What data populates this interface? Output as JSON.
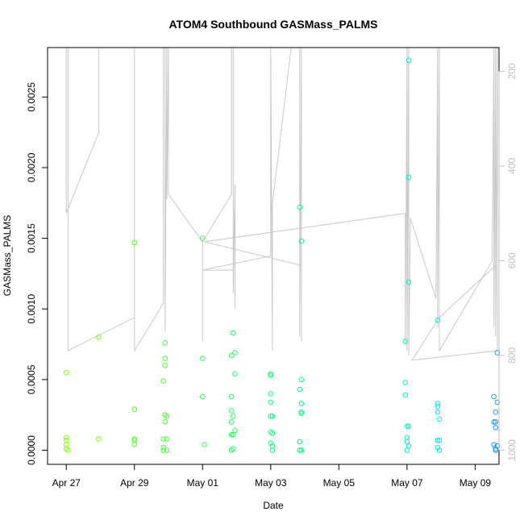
{
  "chart_data": {
    "type": "scatter",
    "title": "ATOM4 Southbound GASMass_PALMS",
    "xlabel": "Date",
    "ylabel": "GASMass_PALMS",
    "x_unit": "days since Apr 27",
    "xlim": [
      -0.55,
      12.7
    ],
    "ylim": [
      -0.0001,
      0.00285
    ],
    "x_ticks": [
      {
        "value": 0,
        "label": "Apr 27"
      },
      {
        "value": 2,
        "label": "Apr 29"
      },
      {
        "value": 4,
        "label": "May 01"
      },
      {
        "value": 6,
        "label": "May 03"
      },
      {
        "value": 8,
        "label": "May 05"
      },
      {
        "value": 10,
        "label": "May 07"
      },
      {
        "value": 12,
        "label": "May 09"
      }
    ],
    "y_ticks": [
      {
        "value": 0,
        "label": "0.0000"
      },
      {
        "value": 0.0005,
        "label": "0.0005"
      },
      {
        "value": 0.001,
        "label": "0.0010"
      },
      {
        "value": 0.0015,
        "label": "0.0015"
      },
      {
        "value": 0.002,
        "label": "0.0020"
      },
      {
        "value": 0.0025,
        "label": "0.0025"
      }
    ],
    "secondary_axis": {
      "label": "",
      "range": [
        1030,
        150
      ],
      "ticks": [
        {
          "value": 200,
          "label": "200"
        },
        {
          "value": 400,
          "label": "400"
        },
        {
          "value": 600,
          "label": "600"
        },
        {
          "value": 800,
          "label": "800"
        },
        {
          "value": 1000,
          "label": "1000"
        }
      ],
      "color": "#bebebe"
    },
    "points": [
      {
        "x": 0.0,
        "y": 0.00055
      },
      {
        "x": 0.0,
        "y": 9e-05
      },
      {
        "x": 0.0,
        "y": 7e-05
      },
      {
        "x": 0.0,
        "y": 4e-05
      },
      {
        "x": 0.0,
        "y": 1e-05
      },
      {
        "x": 0.05,
        "y": 0.0
      },
      {
        "x": 0.95,
        "y": 0.0008
      },
      {
        "x": 0.95,
        "y": 8e-05
      },
      {
        "x": 2.0,
        "y": 0.00147
      },
      {
        "x": 2.0,
        "y": 0.00029
      },
      {
        "x": 2.0,
        "y": 8e-05
      },
      {
        "x": 2.0,
        "y": 7e-05
      },
      {
        "x": 2.0,
        "y": 4e-05
      },
      {
        "x": 2.85,
        "y": 0.00049
      },
      {
        "x": 2.85,
        "y": 8e-05
      },
      {
        "x": 2.85,
        "y": 2e-05
      },
      {
        "x": 2.85,
        "y": 0.0
      },
      {
        "x": 2.9,
        "y": 0.00076
      },
      {
        "x": 2.9,
        "y": 0.00065
      },
      {
        "x": 2.9,
        "y": 0.0006
      },
      {
        "x": 2.9,
        "y": 0.00025
      },
      {
        "x": 2.9,
        "y": 0.0002
      },
      {
        "x": 2.95,
        "y": 0.00024
      },
      {
        "x": 2.95,
        "y": 8e-05
      },
      {
        "x": 2.95,
        "y": 0.0
      },
      {
        "x": 4.0,
        "y": 0.0015
      },
      {
        "x": 4.0,
        "y": 0.00065
      },
      {
        "x": 4.0,
        "y": 0.00038
      },
      {
        "x": 4.05,
        "y": 4e-05
      },
      {
        "x": 4.85,
        "y": 0.00067
      },
      {
        "x": 4.85,
        "y": 0.00038
      },
      {
        "x": 4.85,
        "y": 0.00028
      },
      {
        "x": 4.85,
        "y": 0.0002
      },
      {
        "x": 4.85,
        "y": 0.00011
      },
      {
        "x": 4.85,
        "y": 0.0
      },
      {
        "x": 4.9,
        "y": 0.00083
      },
      {
        "x": 4.9,
        "y": 0.00024
      },
      {
        "x": 4.9,
        "y": 0.00011
      },
      {
        "x": 4.9,
        "y": 1e-05
      },
      {
        "x": 4.95,
        "y": 0.00069
      },
      {
        "x": 4.95,
        "y": 0.00054
      },
      {
        "x": 4.95,
        "y": 0.00014
      },
      {
        "x": 6.0,
        "y": 0.00054
      },
      {
        "x": 6.0,
        "y": 0.00053
      },
      {
        "x": 6.0,
        "y": 0.0004
      },
      {
        "x": 6.0,
        "y": 0.00034
      },
      {
        "x": 6.0,
        "y": 0.00024
      },
      {
        "x": 6.0,
        "y": 0.00013
      },
      {
        "x": 6.0,
        "y": 5e-05
      },
      {
        "x": 6.05,
        "y": 0.00024
      },
      {
        "x": 6.05,
        "y": 0.00012
      },
      {
        "x": 6.05,
        "y": 3e-05
      },
      {
        "x": 6.05,
        "y": 0.0
      },
      {
        "x": 6.85,
        "y": 0.00172
      },
      {
        "x": 6.85,
        "y": 0.00043
      },
      {
        "x": 6.85,
        "y": 6e-05
      },
      {
        "x": 6.85,
        "y": 0.0
      },
      {
        "x": 6.9,
        "y": 0.00148
      },
      {
        "x": 6.9,
        "y": 0.0005
      },
      {
        "x": 6.9,
        "y": 0.00033
      },
      {
        "x": 6.9,
        "y": 0.00027
      },
      {
        "x": 6.9,
        "y": 0.00026
      },
      {
        "x": 6.9,
        "y": 0.0
      },
      {
        "x": 10.05,
        "y": 0.00276
      },
      {
        "x": 10.05,
        "y": 0.00193
      },
      {
        "x": 10.05,
        "y": 0.00119
      },
      {
        "x": 9.95,
        "y": 0.00077
      },
      {
        "x": 9.95,
        "y": 0.00048
      },
      {
        "x": 9.95,
        "y": 0.00039
      },
      {
        "x": 10.0,
        "y": 0.00017
      },
      {
        "x": 10.0,
        "y": 9e-05
      },
      {
        "x": 10.0,
        "y": 6e-05
      },
      {
        "x": 10.05,
        "y": 0.00017
      },
      {
        "x": 10.05,
        "y": 3e-05
      },
      {
        "x": 10.0,
        "y": 0.0
      },
      {
        "x": 10.9,
        "y": 0.00092
      },
      {
        "x": 10.9,
        "y": 0.00033
      },
      {
        "x": 10.9,
        "y": 0.00031
      },
      {
        "x": 10.9,
        "y": 0.00027
      },
      {
        "x": 10.95,
        "y": 0.00022
      },
      {
        "x": 10.9,
        "y": 7e-05
      },
      {
        "x": 10.95,
        "y": 7e-05
      },
      {
        "x": 10.9,
        "y": 2e-05
      },
      {
        "x": 10.95,
        "y": 0.0
      },
      {
        "x": 12.65,
        "y": 0.00069
      },
      {
        "x": 12.55,
        "y": 0.00038
      },
      {
        "x": 12.65,
        "y": 0.00034
      },
      {
        "x": 12.6,
        "y": 0.00027
      },
      {
        "x": 12.55,
        "y": 0.0002
      },
      {
        "x": 12.6,
        "y": 0.0002
      },
      {
        "x": 12.6,
        "y": 0.00016
      },
      {
        "x": 12.55,
        "y": 4e-05
      },
      {
        "x": 12.65,
        "y": 3e-05
      },
      {
        "x": 12.6,
        "y": 1e-05
      },
      {
        "x": 12.6,
        "y": 0.0
      }
    ],
    "point_color_start": "#7fff00",
    "point_color_end": "#1e90ff",
    "altitude_track": {
      "unit": "secondary axis (pressure)",
      "color": "#c8c8c8",
      "points": [
        [
          0.0,
          150
        ],
        [
          0.0,
          500
        ],
        [
          0.95,
          330
        ],
        [
          0.95,
          150
        ],
        [
          0.95,
          150
        ],
        [
          0.05,
          150
        ],
        [
          0.05,
          790
        ],
        [
          2.0,
          720
        ],
        [
          2.0,
          150
        ],
        [
          2.0,
          790
        ],
        [
          2.85,
          690
        ],
        [
          2.85,
          150
        ],
        [
          2.9,
          150
        ],
        [
          2.9,
          750
        ],
        [
          2.95,
          150
        ],
        [
          2.95,
          470
        ],
        [
          3.0,
          150
        ],
        [
          3.0,
          460
        ],
        [
          4.0,
          560
        ],
        [
          4.0,
          770
        ],
        [
          4.0,
          560
        ],
        [
          4.85,
          460
        ],
        [
          4.85,
          150
        ],
        [
          4.9,
          150
        ],
        [
          4.9,
          670
        ],
        [
          4.95,
          440
        ],
        [
          4.95,
          700
        ],
        [
          4.95,
          450
        ],
        [
          4.9,
          620
        ],
        [
          4.0,
          620
        ],
        [
          6.0,
          590
        ],
        [
          6.0,
          150
        ],
        [
          6.05,
          790
        ],
        [
          6.05,
          480
        ],
        [
          6.6,
          150
        ],
        [
          6.85,
          150
        ],
        [
          6.85,
          760
        ],
        [
          6.9,
          150
        ],
        [
          6.9,
          770
        ],
        [
          6.9,
          610
        ],
        [
          4.05,
          560
        ],
        [
          9.95,
          500
        ],
        [
          9.95,
          780
        ],
        [
          10.0,
          150
        ],
        [
          10.0,
          790
        ],
        [
          10.05,
          150
        ],
        [
          10.05,
          800
        ],
        [
          10.1,
          510
        ],
        [
          10.85,
          680
        ],
        [
          10.9,
          150
        ],
        [
          10.9,
          740
        ],
        [
          10.95,
          150
        ],
        [
          10.95,
          790
        ],
        [
          12.5,
          600
        ],
        [
          12.55,
          150
        ],
        [
          12.55,
          740
        ],
        [
          12.6,
          150
        ],
        [
          12.6,
          760
        ],
        [
          12.65,
          150
        ],
        [
          12.65,
          790
        ],
        [
          10.15,
          810
        ],
        [
          10.95,
          720
        ],
        [
          12.6,
          610
        ]
      ]
    }
  }
}
